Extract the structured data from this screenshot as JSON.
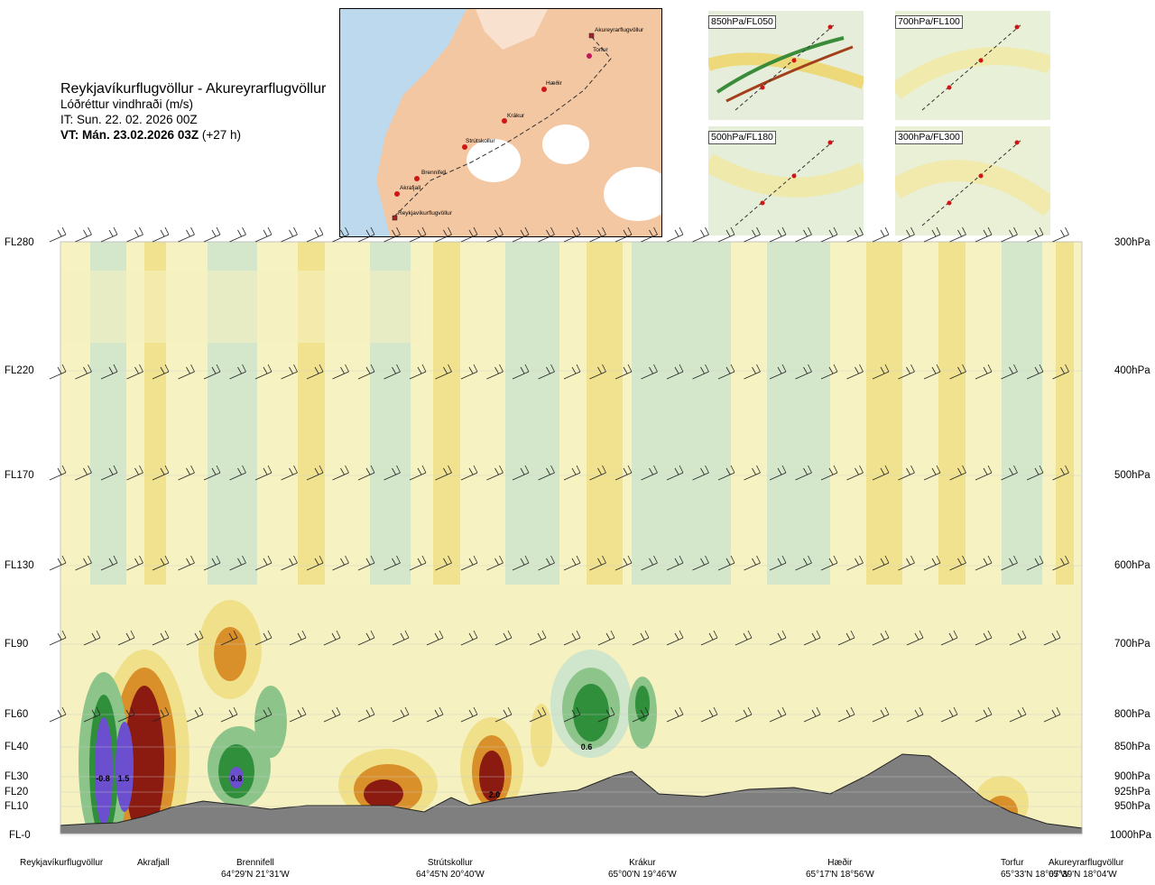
{
  "header": {
    "route": "Reykjavíkurflugvöllur - Akureyrarflugvöllur",
    "subtitle": "Lóðréttur vindhraði (m/s)",
    "issue_time": "IT: Sun. 22. 02. 2026 00Z",
    "valid_time": "VT: Mán. 23.02.2026 03Z",
    "lead_time": "(+27 h)"
  },
  "route_map": {
    "places": [
      "Akureyrarflugvöllur",
      "Torfur",
      "Hæðir",
      "Krákur",
      "Strútskollur",
      "Brennifell",
      "Akrafjall",
      "Reykjavíkurflugvöllur"
    ]
  },
  "mini_maps": [
    {
      "label": "850hPa/FL050"
    },
    {
      "label": "700hPa/FL100"
    },
    {
      "label": "500hPa/FL180"
    },
    {
      "label": "300hPa/FL300"
    }
  ],
  "chart_data": {
    "type": "heatmap",
    "variable": "Lóðréttur vindhraði (m/s)",
    "y_axis_left": [
      "FL280",
      "FL220",
      "FL170",
      "FL130",
      "FL90",
      "FL60",
      "FL40",
      "FL30",
      "FL20",
      "FL10",
      "FL-0"
    ],
    "y_axis_right": [
      "300hPa",
      "400hPa",
      "500hPa",
      "600hPa",
      "700hPa",
      "800hPa",
      "850hPa",
      "900hPa",
      "925hPa",
      "950hPa",
      "1000hPa"
    ],
    "pressure_levels_hpa": [
      300,
      400,
      500,
      600,
      700,
      800,
      850,
      900,
      925,
      950,
      1000
    ],
    "x_waypoints": [
      {
        "name": "Reykjavíkurflugvöllur",
        "coords": ""
      },
      {
        "name": "Akrafjall",
        "coords": ""
      },
      {
        "name": "Brennifell",
        "coords": "64°29'N 21°31'W"
      },
      {
        "name": "Strútskollur",
        "coords": "64°45'N 20°40'W"
      },
      {
        "name": "Krákur",
        "coords": "65°00'N 19°46'W"
      },
      {
        "name": "Hæðir",
        "coords": "65°17'N 18°56'W"
      },
      {
        "name": "Torfur",
        "coords": "65°33'N 18°07'W"
      },
      {
        "name": "Akureyrarflugvöllur",
        "coords": "65°39'N 18°04'W"
      }
    ],
    "annotations": [
      "-0.8",
      "1.5",
      "0.8",
      "0.6",
      "2.0"
    ],
    "colors": {
      "strong_up": "#6b4fcf",
      "up_3": "#8b1a10",
      "up_2": "#d9902a",
      "up_1": "#f0e08a",
      "weak": "#f5f0c0",
      "down_1": "#cfe5cc",
      "down_2": "#8cc48a",
      "down_3": "#2f8f3a",
      "terrain": "#7f7f7f"
    }
  }
}
